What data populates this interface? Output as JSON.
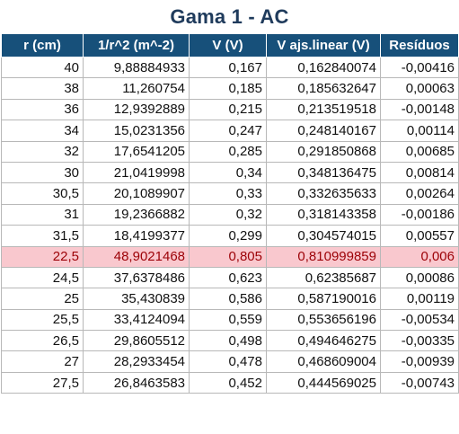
{
  "sheet": {
    "title": "Gama 1 - AC",
    "headers": [
      "r (cm)",
      "1/r^2  (m^-2)",
      "V  (V)",
      "V ajs.linear (V)",
      "Resíduos"
    ],
    "highlight_color": "#f9c8ce",
    "header_color": "#17507a",
    "rows": [
      {
        "r": "40",
        "inv_r2": "9,88884933",
        "v": "0,167",
        "v_fit": "0,162840074",
        "res": "-0,00416",
        "highlight": false
      },
      {
        "r": "38",
        "inv_r2": "11,260754",
        "v": "0,185",
        "v_fit": "0,185632647",
        "res": "0,00063",
        "highlight": false
      },
      {
        "r": "36",
        "inv_r2": "12,9392889",
        "v": "0,215",
        "v_fit": "0,213519518",
        "res": "-0,00148",
        "highlight": false
      },
      {
        "r": "34",
        "inv_r2": "15,0231356",
        "v": "0,247",
        "v_fit": "0,248140167",
        "res": "0,00114",
        "highlight": false
      },
      {
        "r": "32",
        "inv_r2": "17,6541205",
        "v": "0,285",
        "v_fit": "0,291850868",
        "res": "0,00685",
        "highlight": false
      },
      {
        "r": "30",
        "inv_r2": "21,0419998",
        "v": "0,34",
        "v_fit": "0,348136475",
        "res": "0,00814",
        "highlight": false
      },
      {
        "r": "30,5",
        "inv_r2": "20,1089907",
        "v": "0,33",
        "v_fit": "0,332635633",
        "res": "0,00264",
        "highlight": false
      },
      {
        "r": "31",
        "inv_r2": "19,2366882",
        "v": "0,32",
        "v_fit": "0,318143358",
        "res": "-0,00186",
        "highlight": false
      },
      {
        "r": "31,5",
        "inv_r2": "18,4199377",
        "v": "0,299",
        "v_fit": "0,304574015",
        "res": "0,00557",
        "highlight": false
      },
      {
        "r": "22,5",
        "inv_r2": "48,9021468",
        "v": "0,805",
        "v_fit": "0,810999859",
        "res": "0,006",
        "highlight": true
      },
      {
        "r": "24,5",
        "inv_r2": "37,6378486",
        "v": "0,623",
        "v_fit": "0,62385687",
        "res": "0,00086",
        "highlight": false
      },
      {
        "r": "25",
        "inv_r2": "35,430839",
        "v": "0,586",
        "v_fit": "0,587190016",
        "res": "0,00119",
        "highlight": false
      },
      {
        "r": "25,5",
        "inv_r2": "33,4124094",
        "v": "0,559",
        "v_fit": "0,553656196",
        "res": "-0,00534",
        "highlight": false
      },
      {
        "r": "26,5",
        "inv_r2": "29,8605512",
        "v": "0,498",
        "v_fit": "0,494646275",
        "res": "-0,00335",
        "highlight": false
      },
      {
        "r": "27",
        "inv_r2": "28,2933454",
        "v": "0,478",
        "v_fit": "0,468609004",
        "res": "-0,00939",
        "highlight": false
      },
      {
        "r": "27,5",
        "inv_r2": "26,8463583",
        "v": "0,452",
        "v_fit": "0,444569025",
        "res": "-0,00743",
        "highlight": false
      }
    ]
  }
}
